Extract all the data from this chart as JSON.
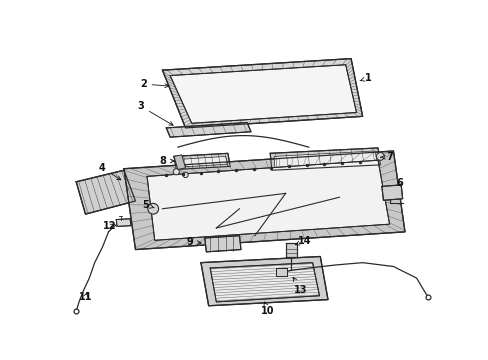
{
  "bg_color": "#ffffff",
  "line_color": "#2a2a2a",
  "label_color": "#111111",
  "label_fs": 7.0
}
